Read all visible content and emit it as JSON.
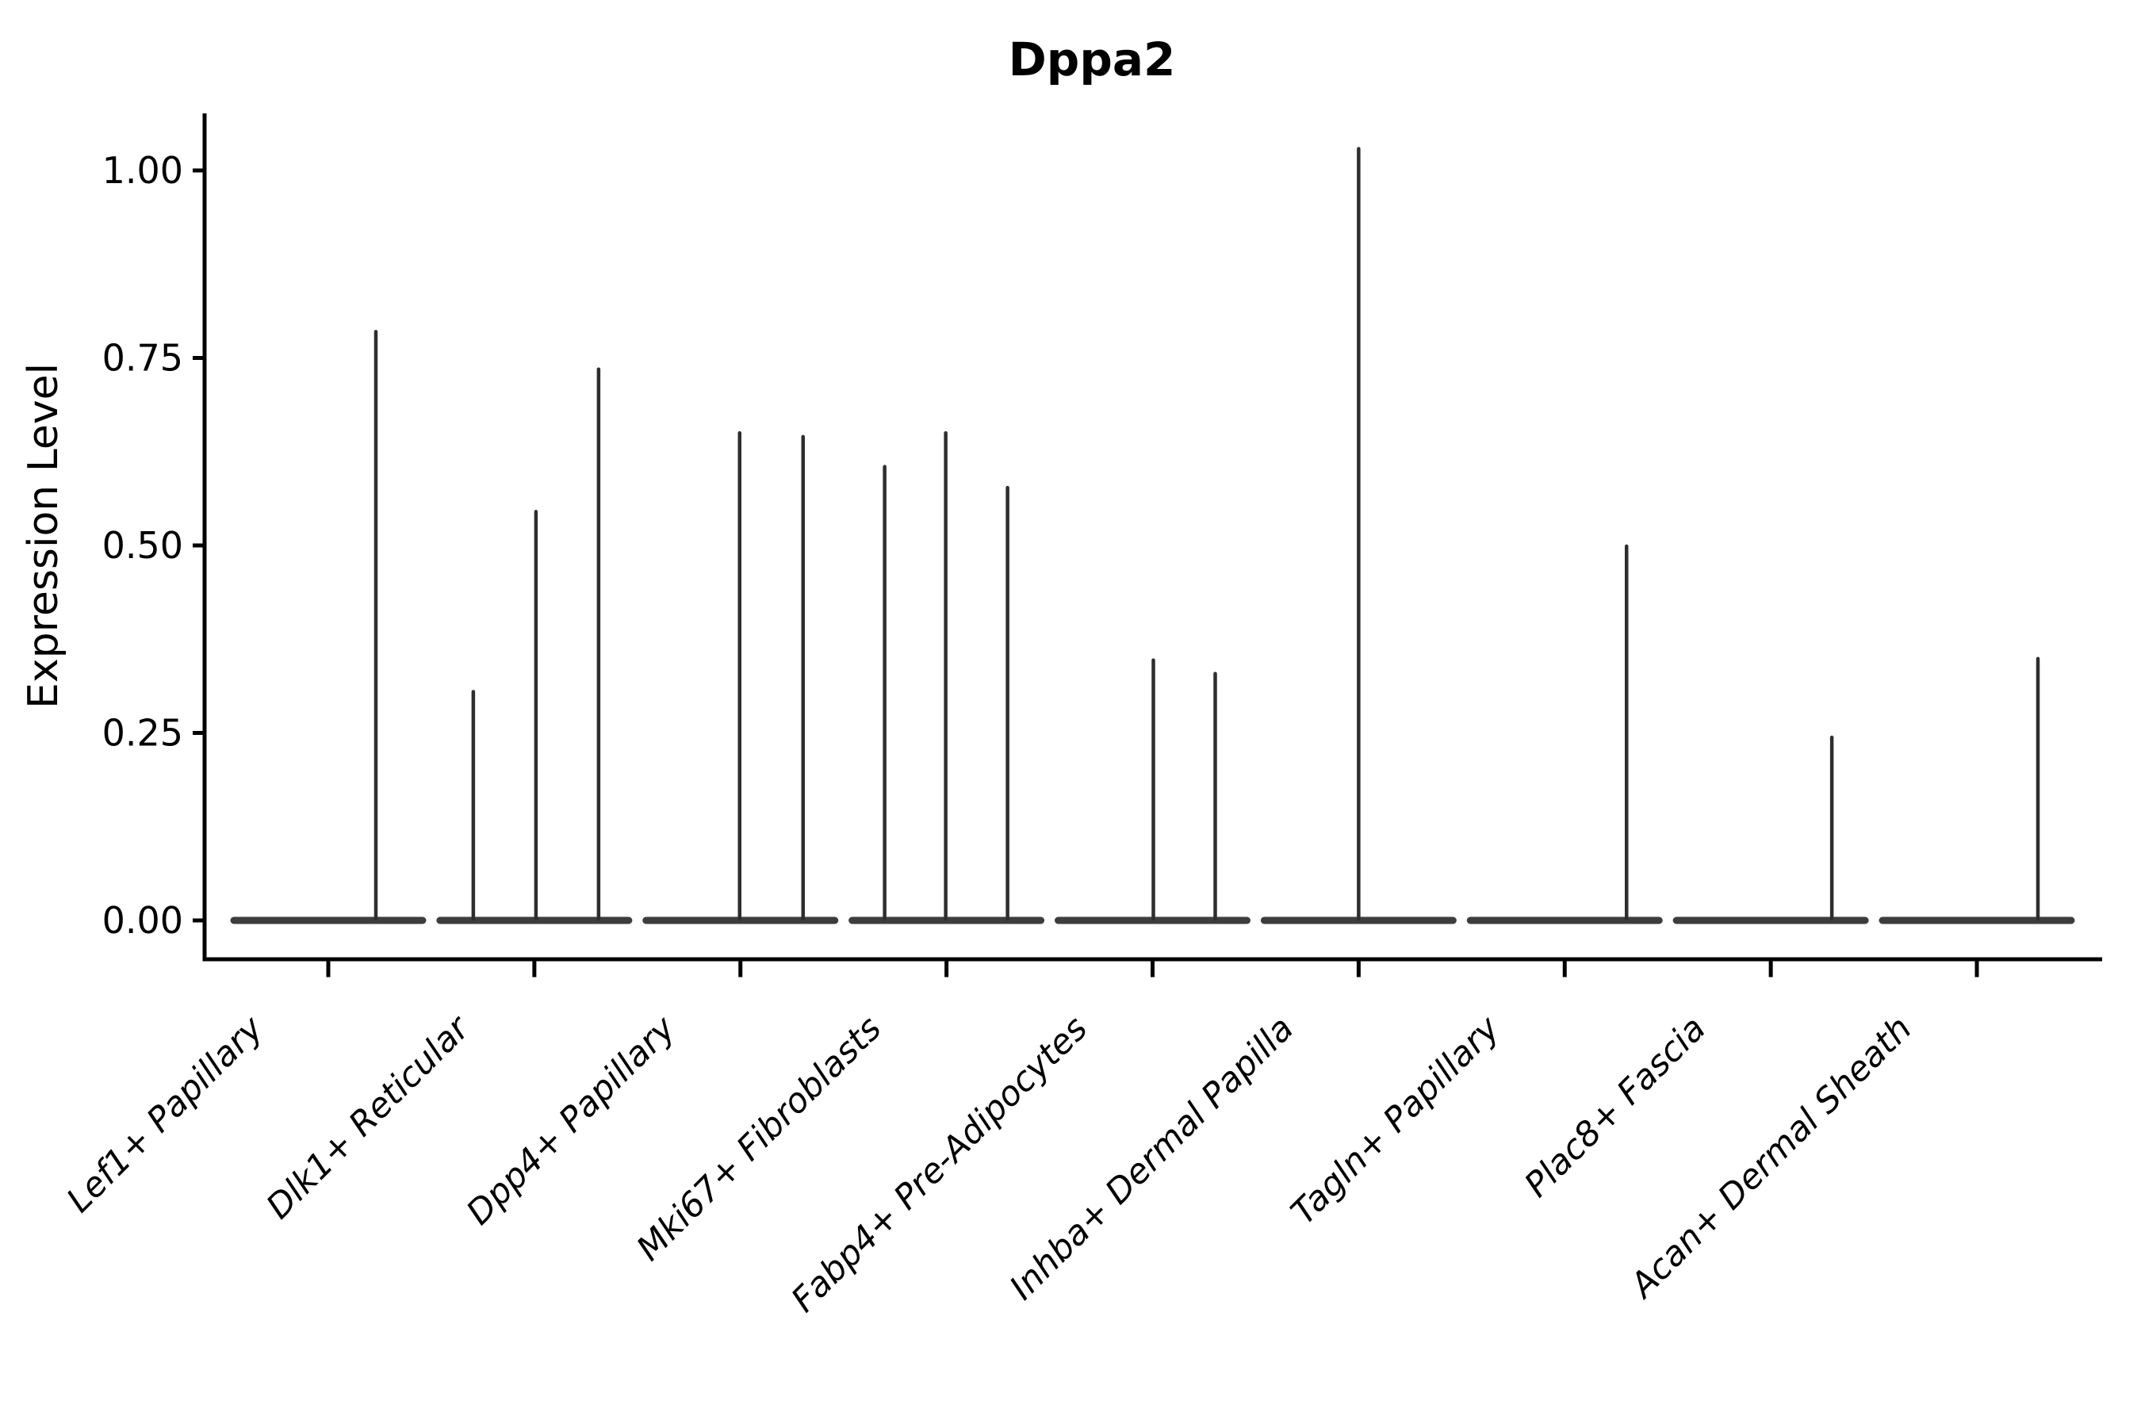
{
  "chart_data": {
    "type": "violin",
    "title": "Dppa2",
    "ylabel": "Expression Level",
    "xlabel": "",
    "grid": false,
    "legend": "none",
    "ylim": [
      -0.05,
      1.08
    ],
    "yticks": [
      "0.00",
      "0.25",
      "0.50",
      "0.75",
      "1.00"
    ],
    "ytick_values": [
      0.0,
      0.25,
      0.5,
      0.75,
      1.0
    ],
    "categories": [
      "Lef1+ Papillary",
      "Dlk1+ Reticular",
      "Dpp4+ Papillary",
      "Mki67+ Fibroblasts",
      "Fabp4+ Pre-Adipocytes",
      "Inhba+ Dermal Papilla",
      "Tagln+ Papillary",
      "Plac8+ Fascia",
      "Acan+ Dermal Sheath"
    ],
    "violins": [
      {
        "category": "Lef1+ Papillary",
        "baseline_value": 0,
        "spikes": [
          {
            "dx": 60,
            "value": 0.785
          }
        ]
      },
      {
        "category": "Dlk1+ Reticular",
        "baseline_value": 0,
        "spikes": [
          {
            "dx": -77,
            "value": 0.305
          },
          {
            "dx": 2,
            "value": 0.545
          },
          {
            "dx": 81,
            "value": 0.735
          }
        ]
      },
      {
        "category": "Dpp4+ Papillary",
        "baseline_value": 0,
        "spikes": [
          {
            "dx": -1,
            "value": 0.65
          },
          {
            "dx": 79,
            "value": 0.645
          }
        ]
      },
      {
        "category": "Mki67+ Fibroblasts",
        "baseline_value": 0,
        "spikes": [
          {
            "dx": -78,
            "value": 0.605
          },
          {
            "dx": -1,
            "value": 0.65
          },
          {
            "dx": 77,
            "value": 0.577
          }
        ]
      },
      {
        "category": "Fabp4+ Pre-Adipocytes",
        "baseline_value": 0,
        "spikes": [
          {
            "dx": 1,
            "value": 0.347
          },
          {
            "dx": 79,
            "value": 0.329
          }
        ]
      },
      {
        "category": "Inhba+ Dermal Papilla",
        "baseline_value": 0,
        "spikes": [
          {
            "dx": 0,
            "value": 1.029
          }
        ]
      },
      {
        "category": "Tagln+ Papillary",
        "baseline_value": 0,
        "spikes": [
          {
            "dx": 78,
            "value": 0.499
          }
        ]
      },
      {
        "category": "Plac8+ Fascia",
        "baseline_value": 0,
        "spikes": [
          {
            "dx": 77,
            "value": 0.244
          }
        ]
      },
      {
        "category": "Acan+ Dermal Sheath",
        "baseline_value": 0,
        "spikes": [
          {
            "dx": 77,
            "value": 0.349
          }
        ]
      }
    ],
    "colors": {
      "spike": "#2e2e2e",
      "baseline": "#3d3d3d",
      "axis": "#000000",
      "background": "#ffffff"
    }
  }
}
